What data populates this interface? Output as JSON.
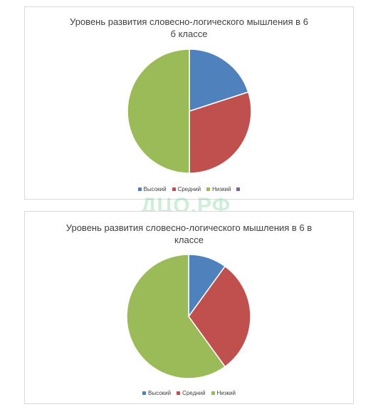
{
  "watermark": "ДЦО.РФ",
  "chart_data": [
    {
      "type": "pie",
      "title": "Уровень развития словесно-логического мышления в 6 б классе",
      "title_lines": [
        "Уровень развития словесно-логического мышления в 6",
        "б классе"
      ],
      "categories": [
        "Высокий",
        "Средний",
        "Низкий",
        ""
      ],
      "values": [
        20,
        30,
        50,
        0
      ],
      "colors": [
        "#4f81bd",
        "#c0504d",
        "#9bbb59",
        "#8064a2"
      ],
      "legend_position": "bottom"
    },
    {
      "type": "pie",
      "title": "Уровень развития словесно-логического мышления в 6 в классе",
      "title_lines": [
        "Уровень развития словесно-логического мышления в 6 в",
        "классе"
      ],
      "categories": [
        "Высокий",
        "Средний",
        "Низкий"
      ],
      "values": [
        10,
        30,
        60
      ],
      "colors": [
        "#4f81bd",
        "#c0504d",
        "#9bbb59"
      ],
      "legend_position": "bottom"
    }
  ]
}
